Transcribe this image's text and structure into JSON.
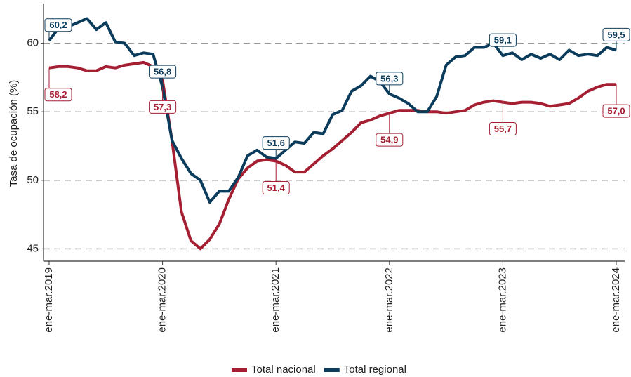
{
  "chart_data": {
    "type": "line",
    "y_label": "Tasa de ocupación (%)",
    "categories": [
      "ene-mar.2019",
      null,
      null,
      null,
      null,
      null,
      null,
      null,
      null,
      null,
      null,
      null,
      "ene-mar.2020",
      null,
      null,
      null,
      null,
      null,
      null,
      null,
      null,
      null,
      null,
      null,
      "ene-mar.2021",
      null,
      null,
      null,
      null,
      null,
      null,
      null,
      null,
      null,
      null,
      null,
      "ene-mar.2022",
      null,
      null,
      null,
      null,
      null,
      null,
      null,
      null,
      null,
      null,
      null,
      "ene-mar.2023",
      null,
      null,
      null,
      null,
      null,
      null,
      null,
      null,
      null,
      null,
      null,
      "ene-mar.2024"
    ],
    "ylim": [
      44.1,
      62.9
    ],
    "yticks": [
      45,
      50,
      55,
      60
    ],
    "grid": true,
    "legend": "bottom",
    "series": [
      {
        "name": "Total nacional",
        "color": "#a51f33",
        "values": [
          58.2,
          58.3,
          58.3,
          58.2,
          58.0,
          58.0,
          58.3,
          58.2,
          58.4,
          58.5,
          58.6,
          58.3,
          57.3,
          52.9,
          47.7,
          45.6,
          45.0,
          45.7,
          46.8,
          48.6,
          50.1,
          50.9,
          51.4,
          51.5,
          51.4,
          51.1,
          50.6,
          50.6,
          51.2,
          51.8,
          52.3,
          52.9,
          53.5,
          54.2,
          54.4,
          54.7,
          54.9,
          55.1,
          55.1,
          55.1,
          55.0,
          55.0,
          54.9,
          55.0,
          55.1,
          55.5,
          55.7,
          55.8,
          55.7,
          55.6,
          55.7,
          55.7,
          55.6,
          55.4,
          55.5,
          55.6,
          56.0,
          56.5,
          56.8,
          57.0,
          57.0
        ],
        "value_labels": [
          "58,2",
          null,
          null,
          null,
          null,
          null,
          null,
          null,
          null,
          null,
          null,
          null,
          "57,3",
          null,
          null,
          null,
          null,
          null,
          null,
          null,
          null,
          null,
          null,
          null,
          "51,4",
          null,
          null,
          null,
          null,
          null,
          null,
          null,
          null,
          null,
          null,
          null,
          "54,9",
          null,
          null,
          null,
          null,
          null,
          null,
          null,
          null,
          null,
          null,
          null,
          "55,7",
          null,
          null,
          null,
          null,
          null,
          null,
          null,
          null,
          null,
          null,
          null,
          "57,0"
        ]
      },
      {
        "name": "Total regional",
        "color": "#0c3c5c",
        "values": [
          60.2,
          61.1,
          61.2,
          61.5,
          61.8,
          61.0,
          61.5,
          60.1,
          60.0,
          59.1,
          59.3,
          59.2,
          56.8,
          52.9,
          51.6,
          50.5,
          50.0,
          48.4,
          49.2,
          49.2,
          50.2,
          51.8,
          52.2,
          51.7,
          51.6,
          52.2,
          52.8,
          52.7,
          53.5,
          53.4,
          54.8,
          55.1,
          56.5,
          56.9,
          57.6,
          57.2,
          56.3,
          56.0,
          55.6,
          55.0,
          55.0,
          56.1,
          58.4,
          59.0,
          59.1,
          59.7,
          59.7,
          60.0,
          59.1,
          59.3,
          58.8,
          59.2,
          58.9,
          59.2,
          58.8,
          59.5,
          59.1,
          59.2,
          59.1,
          59.7,
          59.5
        ],
        "value_labels": [
          "60,2",
          null,
          null,
          null,
          null,
          null,
          null,
          null,
          null,
          null,
          null,
          null,
          "56,8",
          null,
          null,
          null,
          null,
          null,
          null,
          null,
          null,
          null,
          null,
          null,
          "51,6",
          null,
          null,
          null,
          null,
          null,
          null,
          null,
          null,
          null,
          null,
          null,
          "56,3",
          null,
          null,
          null,
          null,
          null,
          null,
          null,
          null,
          null,
          null,
          null,
          "59,1",
          null,
          null,
          null,
          null,
          null,
          null,
          null,
          null,
          null,
          null,
          null,
          "59,5"
        ]
      }
    ]
  }
}
